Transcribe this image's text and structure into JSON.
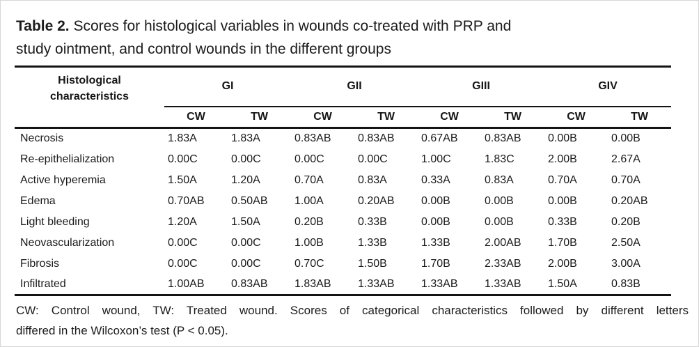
{
  "title": {
    "prefix": "Table 2.",
    "text": " Scores for histological variables in wounds co-treated with PRP and study ointment, and control wounds in the different groups"
  },
  "table": {
    "char_header": "Histological characteristics",
    "groups": [
      "GI",
      "GII",
      "GIII",
      "GIV"
    ],
    "subheaders": [
      "CW",
      "TW"
    ],
    "rows": [
      {
        "label": "Necrosis",
        "values": [
          "1.83A",
          "1.83A",
          "0.83AB",
          "0.83AB",
          "0.67AB",
          "0.83AB",
          "0.00B",
          "0.00B"
        ]
      },
      {
        "label": "Re-epithelialization",
        "values": [
          "0.00C",
          "0.00C",
          "0.00C",
          "0.00C",
          "1.00C",
          "1.83C",
          "2.00B",
          "2.67A"
        ]
      },
      {
        "label": "Active hyperemia",
        "values": [
          "1.50A",
          "1.20A",
          "0.70A",
          "0.83A",
          "0.33A",
          "0.83A",
          "0.70A",
          "0.70A"
        ]
      },
      {
        "label": "Edema",
        "values": [
          "0.70AB",
          "0.50AB",
          "1.00A",
          "0.20AB",
          "0.00B",
          "0.00B",
          "0.00B",
          "0.20AB"
        ]
      },
      {
        "label": "Light bleeding",
        "values": [
          "1.20A",
          "1.50A",
          "0.20B",
          "0.33B",
          "0.00B",
          "0.00B",
          "0.33B",
          "0.20B"
        ]
      },
      {
        "label": "Neovascularization",
        "values": [
          "0.00C",
          "0.00C",
          "1.00B",
          "1.33B",
          "1.33B",
          "2.00AB",
          "1.70B",
          "2.50A"
        ]
      },
      {
        "label": "Fibrosis",
        "values": [
          "0.00C",
          "0.00C",
          "0.70C",
          "1.50B",
          "1.70B",
          "2.33AB",
          "2.00B",
          "3.00A"
        ]
      },
      {
        "label": "Infiltrated",
        "values": [
          "1.00AB",
          "0.83AB",
          "1.83AB",
          "1.33AB",
          "1.33AB",
          "1.33AB",
          "1.50A",
          "0.83B"
        ]
      }
    ]
  },
  "footnote": {
    "line1": "CW: Control wound, TW: Treated wound. Scores of categorical characteristics followed by different letters",
    "line2": "differed in the Wilcoxon’s test (P < 0.05)."
  }
}
